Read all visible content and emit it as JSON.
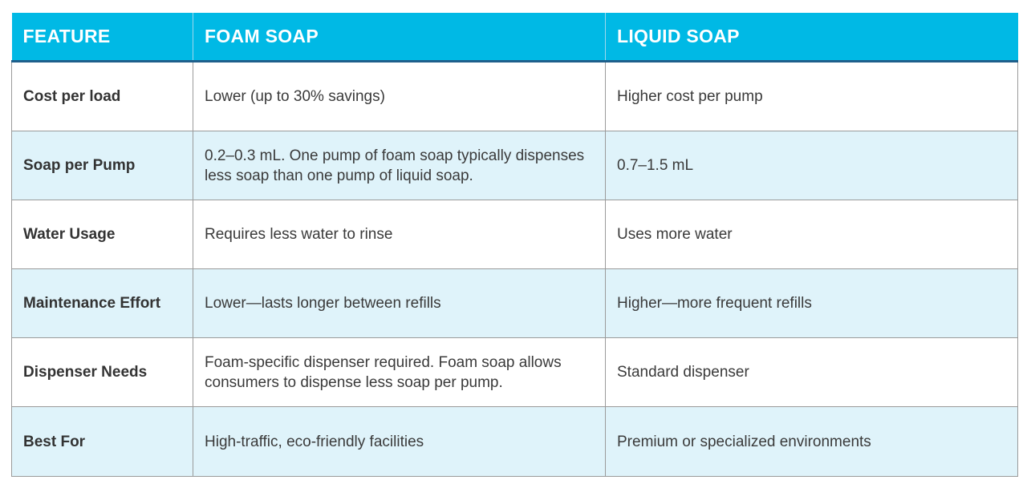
{
  "colors": {
    "header_bg": "#00b9e5",
    "header_rule": "#1f5f8b",
    "row_alt_bg": "#dff3fa",
    "row_bg": "#ffffff",
    "border": "#9a9a9a"
  },
  "table": {
    "headers": [
      "FEATURE",
      "FOAM SOAP",
      "LIQUID SOAP"
    ],
    "rows": [
      [
        "Cost per load",
        "Lower (up to 30% savings)",
        "Higher cost per pump"
      ],
      [
        "Soap per Pump",
        "0.2–0.3 mL. One pump of foam soap typically dispenses less soap than one pump of liquid soap.",
        "0.7–1.5 mL"
      ],
      [
        "Water Usage",
        "Requires less water to rinse",
        "Uses more water"
      ],
      [
        "Maintenance Effort",
        "Lower—lasts longer between refills",
        "Higher—more frequent refills"
      ],
      [
        "Dispenser Needs",
        "Foam-specific dispenser required. Foam soap allows consumers to dispense less soap per pump.",
        "Standard dispenser"
      ],
      [
        "Best For",
        "High-traffic, eco-friendly facilities",
        "Premium or specialized environments"
      ]
    ]
  }
}
